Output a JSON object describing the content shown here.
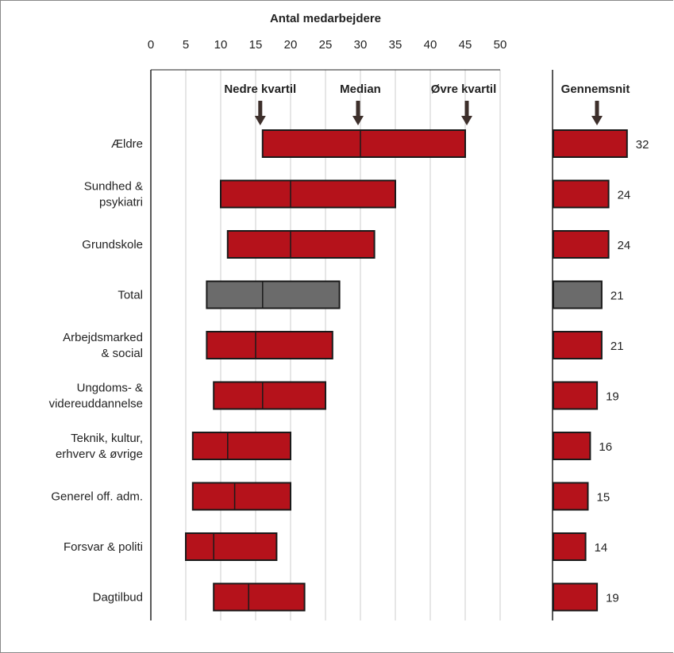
{
  "chart_data": {
    "type": "bar",
    "xlabel": "Antal medarbejdere",
    "xlim": [
      0,
      50
    ],
    "xticks": [
      "0",
      "5",
      "10",
      "15",
      "20",
      "25",
      "30",
      "35",
      "40",
      "45",
      "50"
    ],
    "grid": true,
    "markers": {
      "lower_quartile": "Nedre kvartil",
      "median": "Median",
      "upper_quartile": "Øvre kvartil",
      "mean": "Gennemsnit"
    },
    "categories": [
      "Ældre",
      "Sundhed & psykiatri",
      "Grundskole",
      "Total",
      "Arbejdsmarked & social",
      "Ungdoms- & videreuddannelse",
      "Teknik, kultur, erhverv & øvrige",
      "Generel off. adm.",
      "Forsvar & politi",
      "Dagtilbud"
    ],
    "category_lines": [
      [
        "Ældre"
      ],
      [
        "Sundhed &",
        "psykiatri"
      ],
      [
        "Grundskole"
      ],
      [
        "Total"
      ],
      [
        "Arbejdsmarked",
        "& social"
      ],
      [
        "Ungdoms- &",
        "videreuddannelse"
      ],
      [
        "Teknik, kultur,",
        "erhverv & øvrige"
      ],
      [
        "Generel off. adm."
      ],
      [
        "Forsvar & politi"
      ],
      [
        "Dagtilbud"
      ]
    ],
    "series": [
      {
        "name": "Nedre kvartil",
        "values": [
          16,
          10,
          11,
          8,
          8,
          9,
          6,
          6,
          5,
          9
        ]
      },
      {
        "name": "Median",
        "values": [
          30,
          20,
          20,
          16,
          15,
          16,
          11,
          12,
          9,
          14
        ]
      },
      {
        "name": "Øvre kvartil",
        "values": [
          45,
          35,
          32,
          27,
          26,
          25,
          20,
          20,
          18,
          22
        ]
      },
      {
        "name": "Gennemsnit",
        "values": [
          32,
          24,
          24,
          21,
          21,
          19,
          16,
          15,
          14,
          19
        ]
      }
    ],
    "highlight_category": "Total",
    "colors": {
      "bar": "#b5121b",
      "highlight": "#6b6b6b",
      "grid": "#cccccc",
      "arrow": "#3d2f2b"
    }
  }
}
